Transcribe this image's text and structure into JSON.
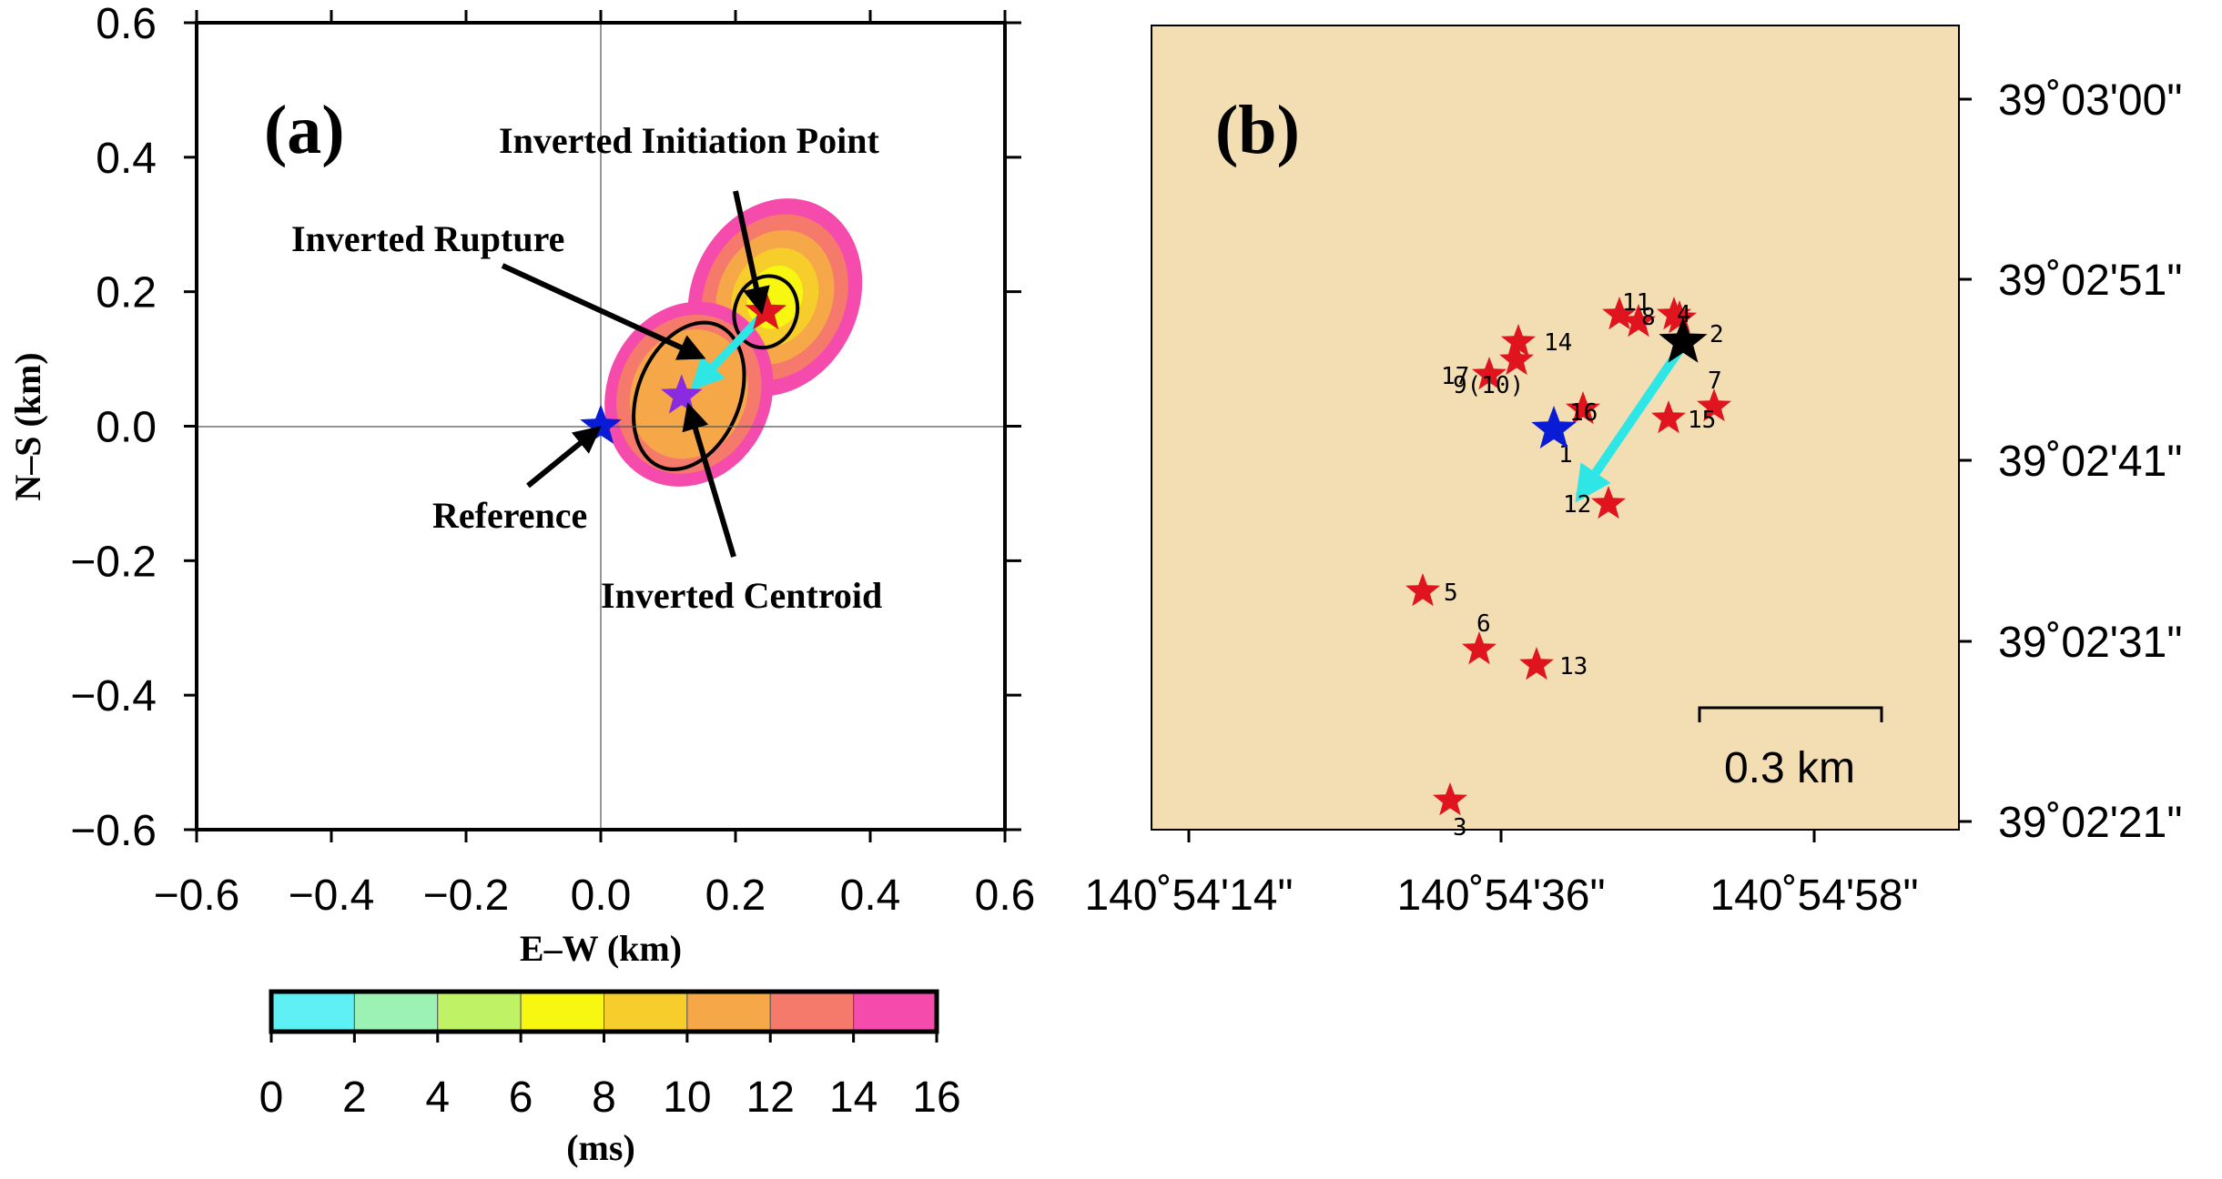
{
  "chart_data": [
    {
      "panel": "(a)",
      "type": "scatter",
      "xlabel": "E–W (km)",
      "ylabel": "N–S (km)",
      "xlim": [
        -0.6,
        0.6
      ],
      "ylim": [
        -0.6,
        0.6
      ],
      "x_ticks": [
        "−0.6",
        "−0.4",
        "−0.2",
        "0.0",
        "0.2",
        "0.4",
        "0.6"
      ],
      "y_ticks": [
        "0.6",
        "0.4",
        "0.2",
        "0.0",
        "−0.2",
        "−0.4",
        "−0.6"
      ],
      "grid": false,
      "points": [
        {
          "name": "reference-star",
          "x": 0.0,
          "y": 0.0,
          "color": "#0a1bd6"
        },
        {
          "name": "centroid-star",
          "x": 0.12,
          "y": 0.045,
          "color": "#8a2be2"
        },
        {
          "name": "initiation-star",
          "x": 0.245,
          "y": 0.17,
          "color": "#e0141e"
        }
      ],
      "rupture_arrow": {
        "from": [
          0.245,
          0.17
        ],
        "to": [
          0.14,
          0.06
        ],
        "color": "#2fe6e6"
      },
      "annotations": [
        {
          "text": "Inverted Initiation Point"
        },
        {
          "text": "Inverted Rupture"
        },
        {
          "text": "Reference"
        },
        {
          "text": "Inverted Centroid"
        }
      ],
      "colorbar": {
        "label": "(ms)",
        "ticks": [
          "0",
          "2",
          "4",
          "6",
          "8",
          "10",
          "12",
          "14",
          "16"
        ],
        "colors": [
          "#5ef0f5",
          "#9cf2b4",
          "#c0f266",
          "#f7f711",
          "#f6cd2a",
          "#f6a848",
          "#f57a6c",
          "#f54bad"
        ]
      }
    },
    {
      "panel": "(b)",
      "type": "scatter",
      "background": "#f3deb3",
      "x_ticks": [
        "140˚54'14\"",
        "140˚54'36\"",
        "140˚54'58\""
      ],
      "y_ticks": [
        "39˚03'00\"",
        "39˚02'51\"",
        "39˚02'41\"",
        "39˚02'31\"",
        "39˚02'21\""
      ],
      "scale_bar": "0.3 km",
      "events": [
        {
          "label": "1",
          "color": "#e0141e"
        },
        {
          "label": "2",
          "color": "#e0141e"
        },
        {
          "label": "3",
          "color": "#e0141e"
        },
        {
          "label": "4",
          "color": "#e0141e"
        },
        {
          "label": "5",
          "color": "#e0141e"
        },
        {
          "label": "6",
          "color": "#e0141e"
        },
        {
          "label": "7",
          "color": "#e0141e"
        },
        {
          "label": "8",
          "color": "#e0141e"
        },
        {
          "label": "9(10)",
          "color": "#e0141e"
        },
        {
          "label": "11",
          "color": "#e0141e"
        },
        {
          "label": "12",
          "color": "#e0141e"
        },
        {
          "label": "13",
          "color": "#e0141e"
        },
        {
          "label": "14",
          "color": "#e0141e"
        },
        {
          "label": "15",
          "color": "#e0141e"
        },
        {
          "label": "16",
          "color": "#e0141e"
        },
        {
          "label": "17",
          "color": "#e0141e"
        }
      ],
      "reference_star_color": "#0a1bd6",
      "initiation_star_color": "#000000",
      "rupture_arrow_color": "#2fe6e6"
    }
  ]
}
